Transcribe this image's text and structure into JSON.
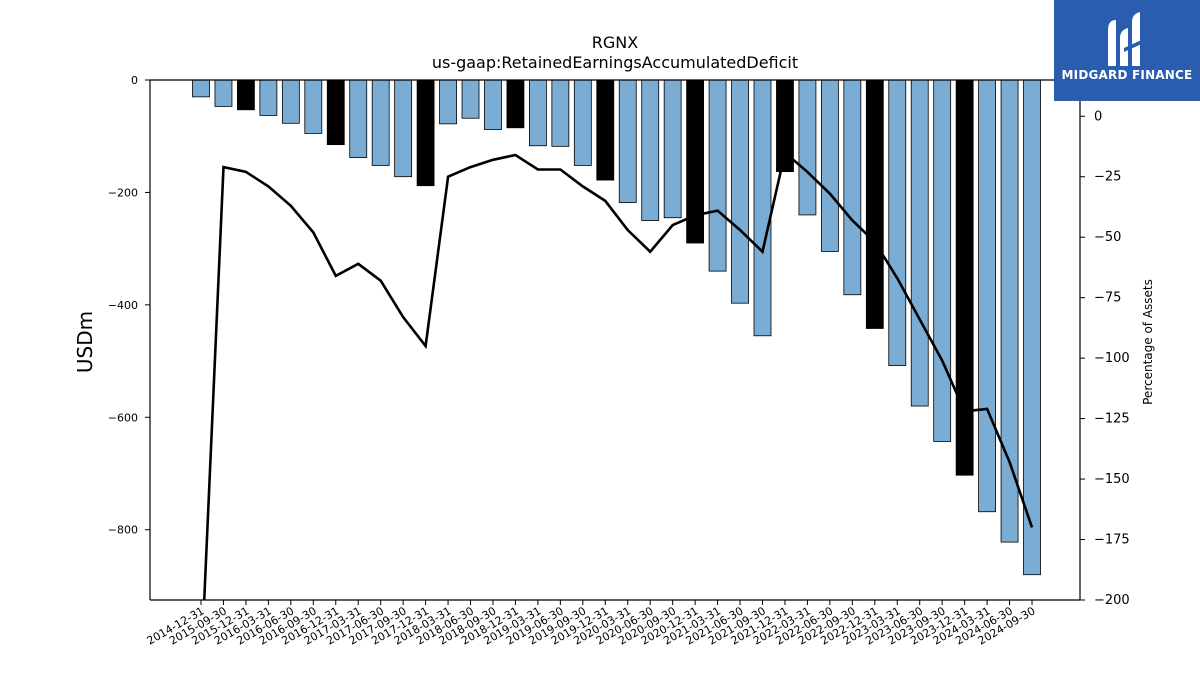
{
  "chart_data": {
    "type": "bar",
    "title": "RGNX",
    "subtitle": "us-gaap:RetainedEarningsAccumulatedDeficit",
    "ylabel": "USDm",
    "y2label": "Percentage of Assets",
    "ylim": [
      -925,
      0
    ],
    "y2lim": [
      -200,
      15
    ],
    "yticks": [
      0,
      -200,
      -400,
      -600,
      -800
    ],
    "y2ticks": [
      0,
      -25,
      -50,
      -75,
      -100,
      -125,
      -150,
      -175,
      -200
    ],
    "categories": [
      "2014-12-31",
      "2015-09-30",
      "2015-12-31",
      "2016-03-31",
      "2016-06-30",
      "2016-09-30",
      "2016-12-31",
      "2017-03-31",
      "2017-06-30",
      "2017-09-30",
      "2017-12-31",
      "2018-03-31",
      "2018-06-30",
      "2018-09-30",
      "2018-12-31",
      "2019-03-31",
      "2019-06-30",
      "2019-09-30",
      "2019-12-31",
      "2020-03-31",
      "2020-06-30",
      "2020-09-30",
      "2020-12-31",
      "2021-03-31",
      "2021-06-30",
      "2021-09-30",
      "2021-12-31",
      "2022-03-31",
      "2022-06-30",
      "2022-09-30",
      "2022-12-31",
      "2023-03-31",
      "2023-06-30",
      "2023-09-30",
      "2023-12-31",
      "2024-03-31",
      "2024-06-30",
      "2024-09-30"
    ],
    "values": [
      -30,
      -47,
      -53,
      -63,
      -77,
      -95,
      -115,
      -138,
      -152,
      -172,
      -188,
      -78,
      -68,
      -88,
      -85,
      -117,
      -118,
      -152,
      -178,
      -218,
      -250,
      -245,
      -290,
      -340,
      -397,
      -455,
      -163,
      -240,
      -305,
      -382,
      -442,
      -508,
      -580,
      -643,
      -703,
      -768,
      -822,
      -880
    ],
    "highlight": [
      false,
      false,
      true,
      false,
      false,
      false,
      true,
      false,
      false,
      false,
      true,
      false,
      false,
      false,
      true,
      false,
      false,
      false,
      true,
      false,
      false,
      false,
      true,
      false,
      false,
      false,
      true,
      false,
      false,
      false,
      true,
      false,
      false,
      false,
      true,
      false,
      false,
      false
    ],
    "series": [
      {
        "values": [
          -230,
          -21,
          -23,
          -29,
          -37,
          -48,
          -66,
          -61,
          -68,
          -83,
          -95,
          -25,
          -21,
          -18,
          -16,
          -22,
          -22,
          -29,
          -35,
          -47,
          -56,
          -45,
          -41,
          -39,
          -47,
          -56,
          -15,
          -23,
          -32,
          -43,
          -52,
          -67,
          -84,
          -101,
          -122,
          -121,
          -143,
          -170
        ]
      }
    ],
    "colors": {
      "bar": "#7badd4",
      "highlight_bar": "#000000",
      "line": "#000000"
    }
  },
  "logo": {
    "text": "MIDGARD FINANCE"
  }
}
